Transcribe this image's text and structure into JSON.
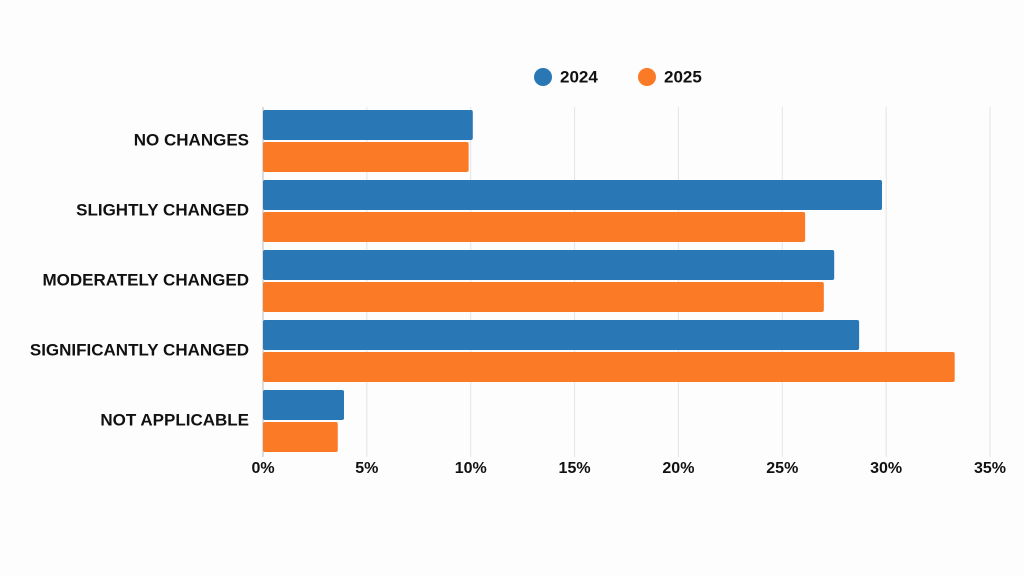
{
  "chart_data": {
    "type": "barh",
    "categories": [
      "NO CHANGES",
      "SLIGHTLY CHANGED",
      "MODERATELY CHANGED",
      "SIGNIFICANTLY CHANGED",
      "NOT APPLICABLE"
    ],
    "series": [
      {
        "name": "2024",
        "color": "#2a77b5",
        "values": [
          10.1,
          29.8,
          27.5,
          28.7,
          3.9
        ]
      },
      {
        "name": "2025",
        "color": "#fb7a25",
        "values": [
          9.9,
          26.1,
          27.0,
          33.3,
          3.6
        ]
      }
    ],
    "xlim": [
      0,
      35
    ],
    "xticks": [
      {
        "value": 0,
        "label": "0%"
      },
      {
        "value": 5,
        "label": "5%"
      },
      {
        "value": 10,
        "label": "10%"
      },
      {
        "value": 15,
        "label": "15%"
      },
      {
        "value": 20,
        "label": "20%"
      },
      {
        "value": 25,
        "label": "25%"
      },
      {
        "value": 30,
        "label": "30%"
      },
      {
        "value": 35,
        "label": "35%"
      }
    ],
    "grid": true
  }
}
